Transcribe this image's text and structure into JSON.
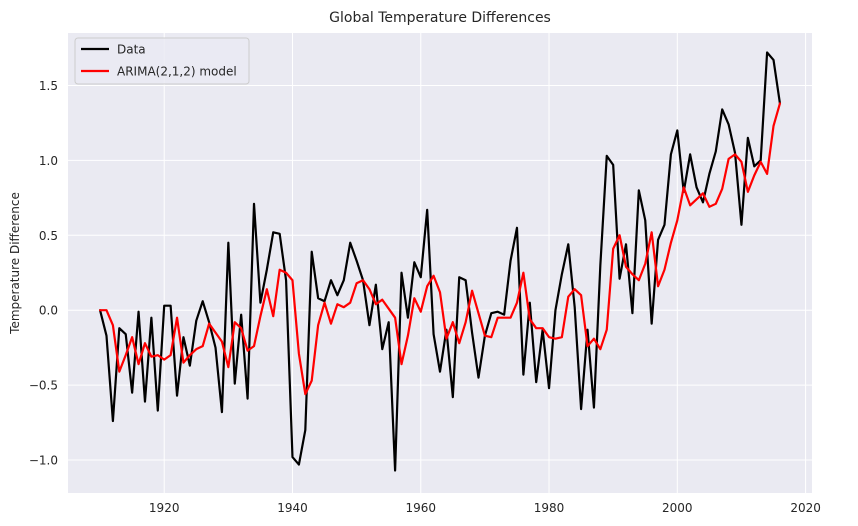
{
  "chart_data": {
    "type": "line",
    "title": "Global Temperature Differences",
    "xlabel": "",
    "ylabel": "Temperature Difference",
    "xlim": [
      1905,
      2021
    ],
    "ylim": [
      -1.22,
      1.85
    ],
    "xticks": [
      1920,
      1940,
      1960,
      1980,
      2000,
      2020
    ],
    "yticks": [
      -1.0,
      -0.5,
      0.0,
      0.5,
      1.0,
      1.5
    ],
    "xtick_labels": [
      "1920",
      "1940",
      "1960",
      "1980",
      "2000",
      "2020"
    ],
    "ytick_labels": [
      "−1.0",
      "−0.5",
      "0.0",
      "0.5",
      "1.0",
      "1.5"
    ],
    "grid": true,
    "legend_position": "top-left",
    "x_start": 1910,
    "series": [
      {
        "name": "Data",
        "color": "#000000",
        "values": [
          0.0,
          -0.17,
          -0.74,
          -0.12,
          -0.16,
          -0.55,
          -0.01,
          -0.61,
          -0.05,
          -0.67,
          0.03,
          0.03,
          -0.57,
          -0.18,
          -0.37,
          -0.07,
          0.06,
          -0.08,
          -0.25,
          -0.68,
          0.45,
          -0.49,
          -0.03,
          -0.59,
          0.71,
          0.05,
          0.27,
          0.52,
          0.51,
          0.2,
          -0.98,
          -1.03,
          -0.8,
          0.39,
          0.08,
          0.06,
          0.2,
          0.1,
          0.2,
          0.45,
          0.33,
          0.2,
          -0.1,
          0.17,
          -0.26,
          -0.08,
          -1.07,
          0.25,
          -0.05,
          0.32,
          0.22,
          0.67,
          -0.16,
          -0.41,
          -0.13,
          -0.58,
          0.22,
          0.2,
          -0.15,
          -0.45,
          -0.17,
          -0.02,
          -0.01,
          -0.03,
          0.33,
          0.55,
          -0.43,
          0.05,
          -0.48,
          -0.13,
          -0.52,
          0.0,
          0.24,
          0.44,
          0.02,
          -0.66,
          -0.13,
          -0.65,
          0.3,
          1.03,
          0.97,
          0.21,
          0.44,
          -0.02,
          0.8,
          0.6,
          -0.09,
          0.47,
          0.57,
          1.04,
          1.2,
          0.79,
          1.04,
          0.82,
          0.72,
          0.91,
          1.06,
          1.34,
          1.24,
          1.05,
          0.57,
          1.15,
          0.96,
          1.0,
          1.72,
          1.67,
          1.38
        ]
      },
      {
        "name": "ARIMA(2,1,2) model",
        "color": "#ff0000",
        "values": [
          0.0,
          0.0,
          -0.1,
          -0.41,
          -0.3,
          -0.18,
          -0.36,
          -0.22,
          -0.31,
          -0.3,
          -0.33,
          -0.3,
          -0.05,
          -0.35,
          -0.3,
          -0.26,
          -0.24,
          -0.09,
          -0.15,
          -0.21,
          -0.38,
          -0.08,
          -0.12,
          -0.27,
          -0.24,
          -0.04,
          0.14,
          -0.04,
          0.27,
          0.25,
          0.2,
          -0.29,
          -0.56,
          -0.47,
          -0.1,
          0.05,
          -0.09,
          0.04,
          0.02,
          0.05,
          0.18,
          0.2,
          0.14,
          0.04,
          0.07,
          0.01,
          -0.05,
          -0.36,
          -0.17,
          0.08,
          -0.01,
          0.16,
          0.23,
          0.12,
          -0.19,
          -0.08,
          -0.22,
          -0.08,
          0.13,
          -0.02,
          -0.17,
          -0.18,
          -0.05,
          -0.05,
          -0.05,
          0.05,
          0.25,
          -0.06,
          -0.12,
          -0.12,
          -0.18,
          -0.19,
          -0.18,
          0.09,
          0.14,
          0.1,
          -0.24,
          -0.19,
          -0.26,
          -0.13,
          0.41,
          0.5,
          0.29,
          0.24,
          0.2,
          0.31,
          0.52,
          0.16,
          0.27,
          0.45,
          0.6,
          0.82,
          0.7,
          0.74,
          0.78,
          0.69,
          0.71,
          0.81,
          1.01,
          1.04,
          0.99,
          0.79,
          0.9,
          0.99,
          0.91,
          1.23,
          1.38
        ]
      }
    ]
  }
}
